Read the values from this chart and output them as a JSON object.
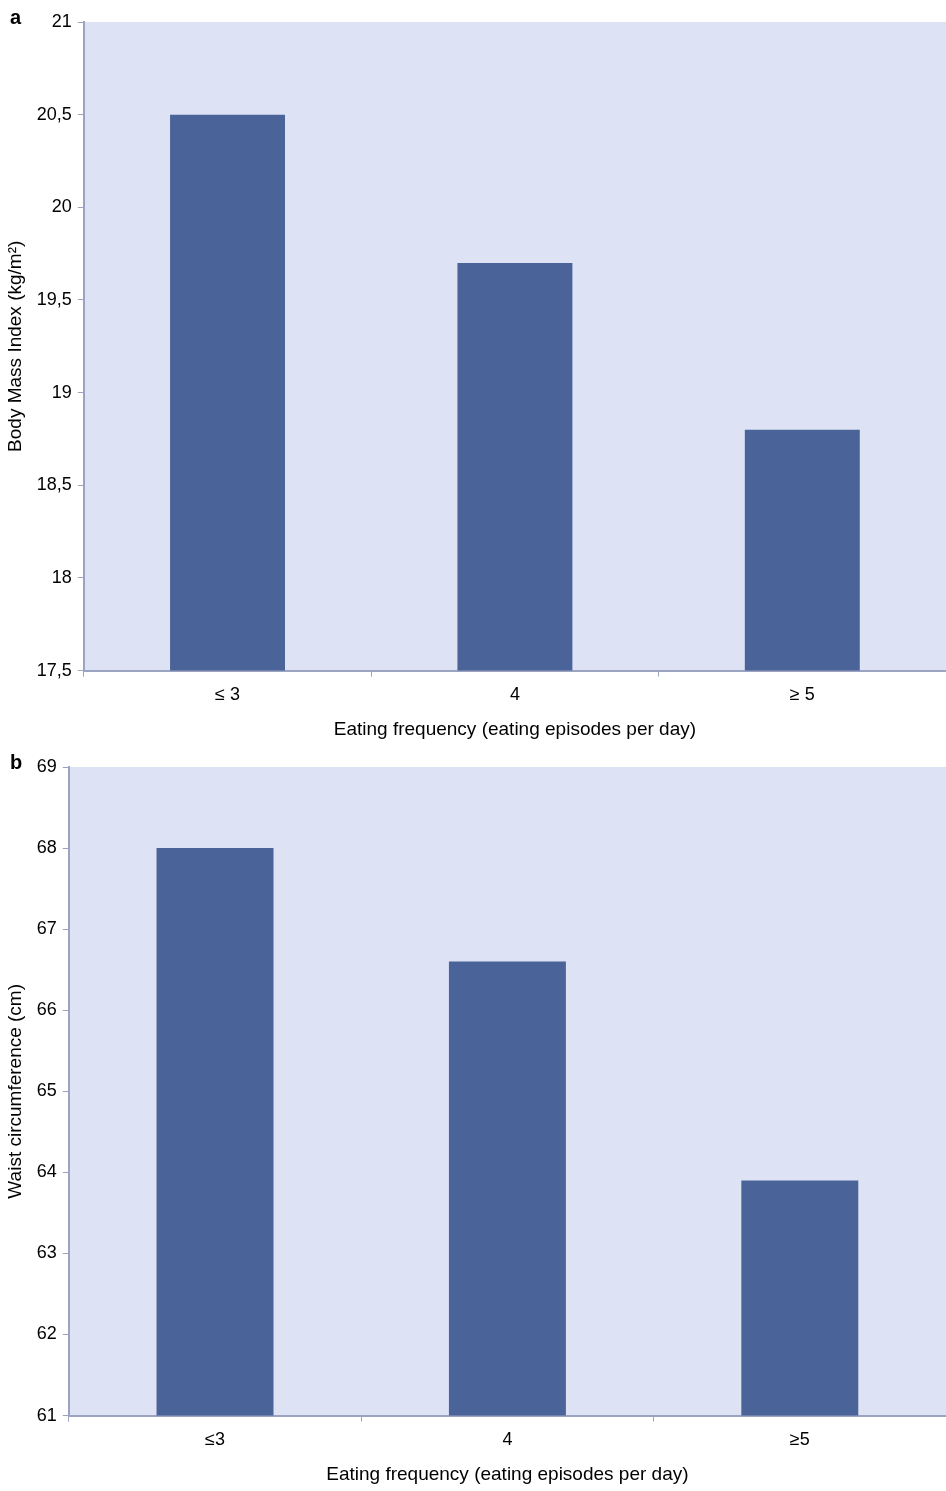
{
  "chart_data": [
    {
      "type": "bar",
      "title": "a",
      "xlabel": "Eating frequency (eating episodes per day)",
      "ylabel": "Body Mass Index (kg/m²)",
      "categories": [
        "≤ 3",
        "4",
        "≥ 5"
      ],
      "values": [
        20.5,
        19.7,
        18.8
      ],
      "color": "#4a6399",
      "ylim": [
        17.5,
        21
      ],
      "yticks": [
        {
          "value": 17.5,
          "label": "17,5"
        },
        18,
        {
          "value": 18.5,
          "label": "18,5"
        },
        19,
        {
          "value": 19.5,
          "label": "19,5"
        },
        20,
        {
          "value": 20.5,
          "label": "20,5"
        },
        21
      ],
      "grid": false,
      "legend": false
    },
    {
      "type": "bar",
      "title": "b",
      "xlabel": "Eating frequency (eating episodes per day)",
      "ylabel": "Waist circumference (cm)",
      "categories": [
        "≤3",
        "4",
        "≥5"
      ],
      "values": [
        68,
        66.6,
        63.9
      ],
      "color": "#4a6399",
      "ylim": [
        61,
        69
      ],
      "yticks": [
        61,
        62,
        63,
        64,
        65,
        66,
        67,
        68,
        69
      ],
      "grid": false,
      "legend": false
    }
  ]
}
